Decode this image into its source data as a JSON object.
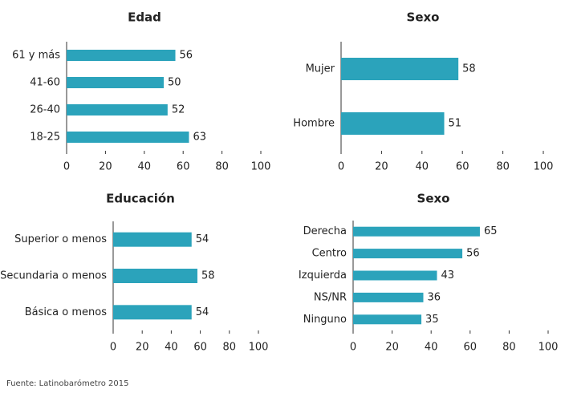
{
  "chart_data": [
    {
      "type": "hbar",
      "title": "Edad",
      "categories": [
        "61 y más",
        "41-60",
        "26-40",
        "18-25"
      ],
      "values": [
        56,
        50,
        52,
        63
      ],
      "color": "#2ba3bb",
      "xlim": [
        0,
        100
      ],
      "xticks": [
        0,
        20,
        40,
        60,
        80,
        100
      ]
    },
    {
      "type": "hbar",
      "title": "Sexo",
      "categories": [
        "Mujer",
        "Hombre"
      ],
      "values": [
        58,
        51
      ],
      "color": "#2ba3bb",
      "xlim": [
        0,
        100
      ],
      "xticks": [
        0,
        20,
        40,
        60,
        80,
        100
      ]
    },
    {
      "type": "hbar",
      "title": "Educación",
      "categories": [
        "Superior o menos",
        "Secundaria o menos",
        "Básica o menos"
      ],
      "values": [
        54,
        58,
        54
      ],
      "color": "#2ba3bb",
      "xlim": [
        0,
        100
      ],
      "xticks": [
        0,
        20,
        40,
        60,
        80,
        100
      ]
    },
    {
      "type": "hbar",
      "title": "Sexo",
      "categories": [
        "Derecha",
        "Centro",
        "Izquierda",
        "NS/NR",
        "Ninguno"
      ],
      "values": [
        65,
        56,
        43,
        36,
        35
      ],
      "color": "#2ba3bb",
      "xlim": [
        0,
        100
      ],
      "xticks": [
        0,
        20,
        40,
        60,
        80,
        100
      ]
    }
  ],
  "source": "Fuente: Latinobarómetro 2015"
}
